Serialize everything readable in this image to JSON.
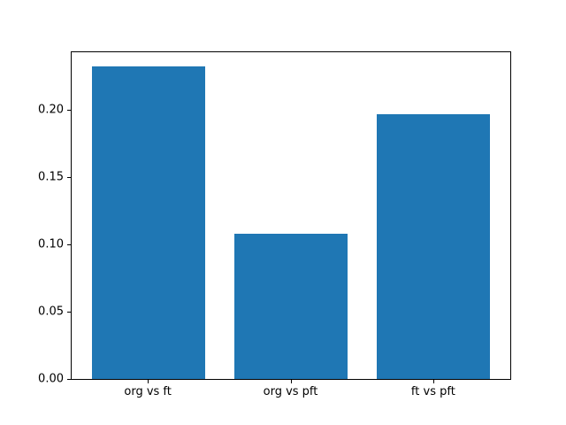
{
  "chart_data": {
    "type": "bar",
    "categories": [
      "org vs ft",
      "org vs pft",
      "ft vs pft"
    ],
    "values": [
      0.233,
      0.108,
      0.197
    ],
    "title": "",
    "xlabel": "",
    "ylabel": "",
    "ylim": [
      0,
      0.2434
    ],
    "xlim": [
      -0.54,
      2.54
    ],
    "yticks": [
      0.0,
      0.05,
      0.1,
      0.15,
      0.2
    ],
    "ytick_labels": [
      "0.00",
      "0.05",
      "0.10",
      "0.15",
      "0.20"
    ],
    "bar_color": "#1f77b4",
    "bar_width_fraction": 0.8,
    "grid": false,
    "legend": null,
    "frame_color": "#000000",
    "background_color": "#ffffff"
  }
}
